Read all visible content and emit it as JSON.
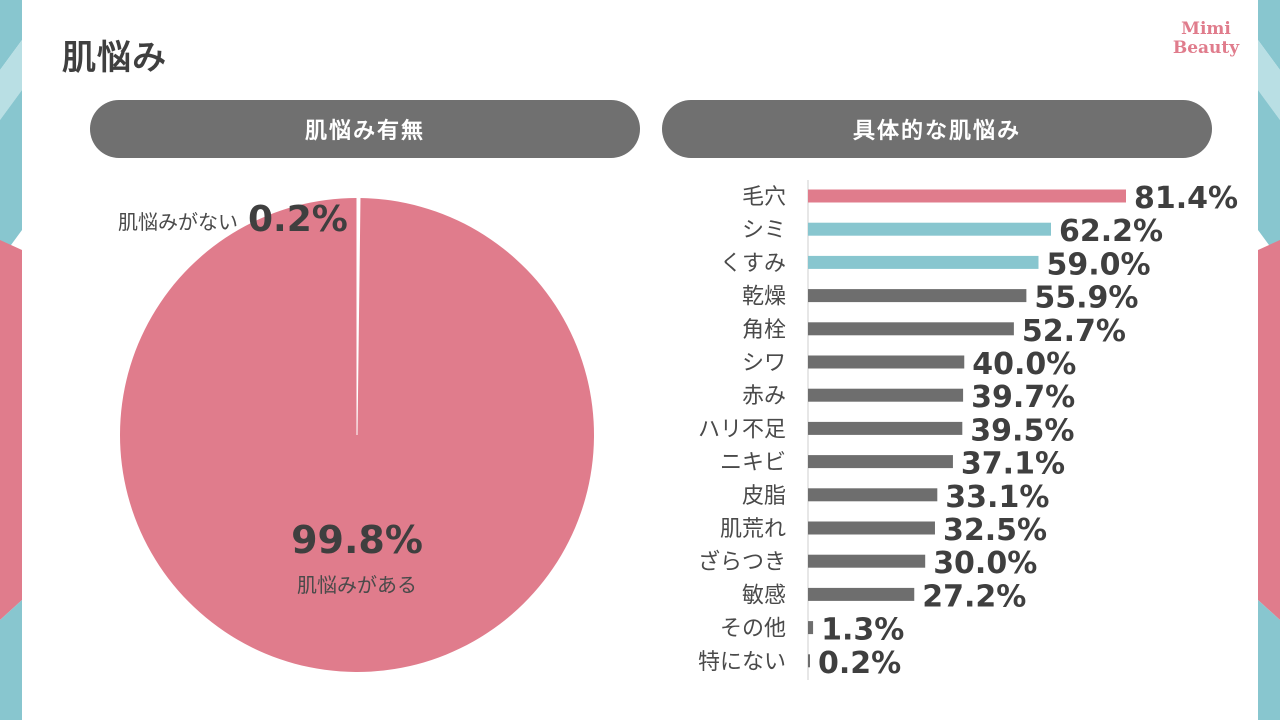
{
  "page": {
    "title": "肌悩み"
  },
  "logo": {
    "line1": "Mimi",
    "line2": "Beauty"
  },
  "colors": {
    "pink": "#e07c8c",
    "teal": "#88c6cf",
    "gray": "#6e6e6e",
    "pill": "#707070"
  },
  "chart_data": [
    {
      "type": "pie",
      "title": "肌悩み有無",
      "slices": [
        {
          "label": "肌悩みがある",
          "value": 99.8,
          "display": "99.8%",
          "color": "#e07c8c"
        },
        {
          "label": "肌悩みがない",
          "value": 0.2,
          "display": "0.2%",
          "color": "#ffffff"
        }
      ]
    },
    {
      "type": "bar",
      "orientation": "horizontal",
      "title": "具体的な肌悩み",
      "categories": [
        "毛穴",
        "シミ",
        "くすみ",
        "乾燥",
        "角栓",
        "シワ",
        "赤み",
        "ハリ不足",
        "ニキビ",
        "皮脂",
        "肌荒れ",
        "ざらつき",
        "敏感",
        "その他",
        "特にない"
      ],
      "values": [
        81.4,
        62.2,
        59.0,
        55.9,
        52.7,
        40.0,
        39.7,
        39.5,
        37.1,
        33.1,
        32.5,
        30.0,
        27.2,
        1.3,
        0.2
      ],
      "value_labels": [
        "81.4%",
        "62.2%",
        "59.0%",
        "55.9%",
        "52.7%",
        "40.0%",
        "39.7%",
        "39.5%",
        "37.1%",
        "33.1%",
        "32.5%",
        "30.0%",
        "27.2%",
        "1.3%",
        "0.2%"
      ],
      "bar_colors": [
        "#e07c8c",
        "#88c6cf",
        "#88c6cf",
        "#6e6e6e",
        "#6e6e6e",
        "#6e6e6e",
        "#6e6e6e",
        "#6e6e6e",
        "#6e6e6e",
        "#6e6e6e",
        "#6e6e6e",
        "#6e6e6e",
        "#6e6e6e",
        "#6e6e6e",
        "#6e6e6e"
      ]
    }
  ]
}
